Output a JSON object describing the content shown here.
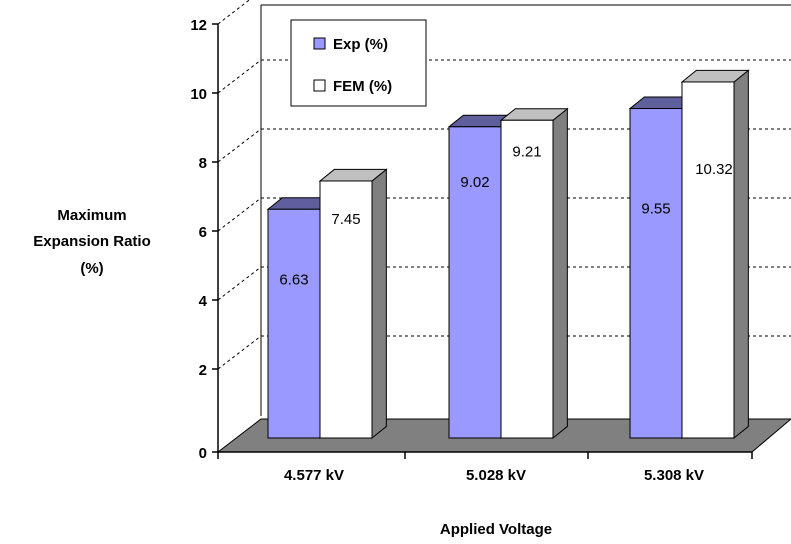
{
  "chart_data": {
    "type": "bar",
    "three_d": true,
    "title": "",
    "ylabel_lines": [
      "Maximum",
      "Expansion Ratio",
      "(%)"
    ],
    "xlabel": "Applied Voltage",
    "categories": [
      "4.577 kV",
      "5.028 kV",
      "5.308 kV"
    ],
    "series": [
      {
        "name": "Exp (%)",
        "values": [
          6.63,
          9.02,
          9.55
        ],
        "color": "#9999ff"
      },
      {
        "name": "FEM (%)",
        "values": [
          7.45,
          9.21,
          10.32
        ],
        "color": "#ffffff"
      }
    ],
    "data_labels": [
      [
        "6.63",
        "9.02",
        "9.55"
      ],
      [
        "7.45",
        "9.21",
        "10.32"
      ]
    ],
    "yticks": [
      "0",
      "2",
      "4",
      "6",
      "8",
      "10",
      "12"
    ],
    "ylim": [
      0,
      12
    ],
    "grid": true,
    "legend": "top-left",
    "colors": {
      "floor": "#808080",
      "wall_grid": "#000000"
    }
  }
}
